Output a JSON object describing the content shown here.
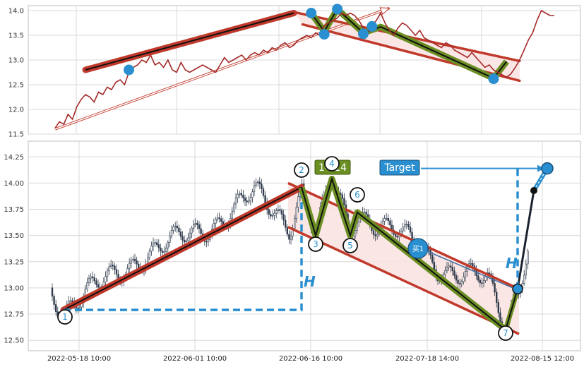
{
  "chart_data": [
    {
      "type": "line",
      "title": "",
      "ylim": [
        11.5,
        14.1
      ],
      "y_ticks": [
        11.5,
        12.0,
        12.5,
        13.0,
        13.5,
        14.0
      ],
      "grid": true,
      "series": [
        {
          "values": [
            11.62,
            11.75,
            11.7,
            11.9,
            11.8,
            12.05,
            12.2,
            12.3,
            12.25,
            12.15,
            12.35,
            12.3,
            12.45,
            12.4,
            12.55,
            12.6,
            12.5,
            12.75,
            12.85,
            12.9,
            13.0,
            12.95,
            13.1,
            12.9,
            12.95,
            12.85,
            13.0,
            12.8,
            12.75,
            12.95,
            12.8,
            12.75,
            12.8,
            12.85,
            12.9,
            12.85,
            12.8,
            12.75,
            12.9,
            13.05,
            12.95,
            13.0,
            13.05,
            13.1,
            13.0,
            13.1,
            13.15,
            13.1,
            13.2,
            13.15,
            13.25,
            13.2,
            13.3,
            13.35,
            13.25,
            13.3,
            13.4,
            13.45,
            13.5,
            13.45,
            13.55,
            13.5,
            13.7,
            13.75,
            13.8,
            13.85,
            13.95,
            13.9,
            13.95,
            13.9,
            13.8,
            13.65,
            13.55,
            13.7,
            13.8,
            13.95,
            13.75,
            13.6,
            13.5,
            13.65,
            13.75,
            13.7,
            13.6,
            13.5,
            13.6,
            13.45,
            13.4,
            13.35,
            13.3,
            13.25,
            13.35,
            13.3,
            13.2,
            13.15,
            13.1,
            13.05,
            13.15,
            13.05,
            12.95,
            12.85,
            12.9,
            12.8,
            12.75,
            12.7,
            12.65,
            12.72,
            12.85,
            13.0,
            13.2,
            13.4,
            13.55,
            13.8,
            14.0,
            13.95,
            13.9,
            13.9
          ]
        }
      ],
      "overlays": [
        {
          "type": "trend-line",
          "color": "#c0392b",
          "from": [
            7,
            12.8
          ],
          "to": [
            55,
            13.95
          ]
        },
        {
          "type": "arrow",
          "color": "#c0392b",
          "from": [
            0,
            11.6
          ],
          "to": [
            77,
            14.05
          ]
        },
        {
          "type": "channel",
          "color": "#c0392b",
          "upper": [
            [
              55,
              13.97
            ],
            [
              107,
              12.98
            ]
          ],
          "lower": [
            [
              57,
              13.72
            ],
            [
              107,
              12.58
            ]
          ]
        },
        {
          "type": "zigzag",
          "color": "#6b8e23",
          "points": [
            [
              59,
              13.95
            ],
            [
              62,
              13.58
            ],
            [
              65,
              14.03
            ],
            [
              71,
              13.55
            ],
            [
              75,
              13.67
            ],
            [
              101,
              12.63
            ],
            [
              104,
              12.97
            ]
          ]
        },
        {
          "type": "markers",
          "color": "#2a8fd0",
          "points": [
            [
              17,
              12.8
            ],
            [
              59,
              13.95
            ],
            [
              62,
              13.52
            ],
            [
              65,
              14.03
            ],
            [
              71,
              13.53
            ],
            [
              73,
              13.68
            ],
            [
              101,
              12.62
            ]
          ]
        }
      ]
    },
    {
      "type": "candlestick",
      "title": "",
      "ylim": [
        12.4,
        14.4
      ],
      "y_ticks": [
        12.5,
        12.75,
        13.0,
        13.25,
        13.5,
        13.75,
        14.0,
        14.25
      ],
      "x_ticks": [
        "2022-05-18 10:00",
        "2022-06-01 10:00",
        "2022-06-16 10:00",
        "2022-07-18 14:00",
        "2022-08-15 12:00"
      ],
      "grid": true,
      "points": [
        {
          "label": "1",
          "value": 12.79
        },
        {
          "label": "2",
          "value": 13.96
        },
        {
          "label": "3",
          "value": 13.5
        },
        {
          "label": "4",
          "value": 14.04
        },
        {
          "label": "5",
          "value": 13.5
        },
        {
          "label": "6",
          "value": 13.72
        },
        {
          "label": "7",
          "value": 12.6
        }
      ],
      "annotations": {
        "peak_value": "14.14",
        "target_label": "Target",
        "buy_label": "买1",
        "height_label": "H",
        "target_value": 14.14,
        "buy_value": 12.99
      },
      "overlays": [
        {
          "type": "trend-line",
          "color": "#c0392b",
          "from": [
            0,
            12.79
          ],
          "to": [
            1,
            13.96
          ]
        },
        {
          "type": "channel",
          "color": "#c0392b",
          "upper": [
            [
              2,
              14.0
            ],
            [
              7,
              12.99
            ]
          ],
          "lower": [
            [
              2,
              13.58
            ],
            [
              7,
              12.56
            ]
          ]
        },
        {
          "type": "zigzag",
          "color": "#6b8e23",
          "points": [
            "2",
            "3",
            "4",
            "5",
            "6",
            "7"
          ]
        },
        {
          "type": "projection",
          "color": "#2a8fd0",
          "from": 12.99,
          "to": 14.14
        }
      ]
    }
  ],
  "colors": {
    "price_line": "#a52a2a",
    "trend_red": "#c0392b",
    "channel_fill": "#f9e3e1",
    "zigzag_green": "#6b8e23",
    "marker_blue": "#2a8fd0",
    "candle": "#2f3b4c",
    "grid": "#d8d8d8",
    "frame": "#bfbfbf"
  }
}
